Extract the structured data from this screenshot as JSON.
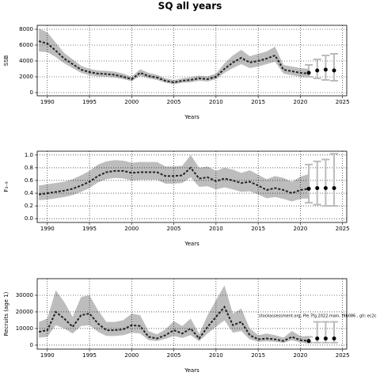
{
  "chart_data": [
    {
      "type": "line",
      "title": "SQ all years",
      "x_label": "Years",
      "y_label": "SSB",
      "xlim": [
        1988.8,
        2025.5
      ],
      "xticks": [
        1990,
        1995,
        2000,
        2005,
        2010,
        2015,
        2020,
        2025
      ],
      "ylim": [
        -400,
        8500
      ],
      "yticks": [
        0,
        2000,
        4000,
        6000,
        8000
      ],
      "grid": true,
      "x": [
        1989,
        1990,
        1991,
        1992,
        1993,
        1994,
        1995,
        1996,
        1997,
        1998,
        1999,
        2000,
        2001,
        2002,
        2003,
        2004,
        2005,
        2006,
        2007,
        2008,
        2009,
        2010,
        2011,
        2012,
        2013,
        2014,
        2015,
        2016,
        2017,
        2018,
        2019,
        2020,
        2021
      ],
      "values": [
        6500,
        6200,
        5300,
        4300,
        3600,
        2900,
        2600,
        2400,
        2350,
        2250,
        2000,
        1700,
        2500,
        2100,
        1900,
        1500,
        1300,
        1500,
        1600,
        1800,
        1700,
        2000,
        3000,
        3800,
        4400,
        3800,
        4000,
        4300,
        4700,
        2900,
        2700,
        2500,
        2400
      ],
      "lower": [
        5200,
        5100,
        4500,
        3700,
        3100,
        2500,
        2200,
        2050,
        2000,
        1900,
        1700,
        1450,
        2100,
        1800,
        1600,
        1250,
        1050,
        1250,
        1300,
        1500,
        1400,
        1700,
        2500,
        3100,
        3600,
        3100,
        3300,
        3600,
        3900,
        2400,
        2200,
        2000,
        1900
      ],
      "upper": [
        8100,
        7600,
        6300,
        5000,
        4200,
        3400,
        3000,
        2800,
        2750,
        2650,
        2400,
        2000,
        2950,
        2500,
        2250,
        1800,
        1600,
        1800,
        1950,
        2150,
        2050,
        2400,
        3700,
        4700,
        5400,
        4600,
        4900,
        5200,
        5800,
        3500,
        3300,
        3100,
        3000
      ],
      "forecast_x": [
        2021,
        2022,
        2023,
        2024
      ],
      "forecast_values": [
        2500,
        2800,
        2900,
        2800
      ],
      "forecast_lower": [
        2000,
        1800,
        1600,
        1500
      ],
      "forecast_upper": [
        3500,
        4200,
        4700,
        4900
      ],
      "color": "#222222",
      "band_color": "#bdbdbd",
      "forecast_color": "#bbbbbb"
    },
    {
      "type": "line",
      "x_label": "Years",
      "y_label": "F₃₋₉",
      "xlim": [
        1988.8,
        2025.5
      ],
      "xticks": [
        1990,
        1995,
        2000,
        2005,
        2010,
        2015,
        2020,
        2025
      ],
      "ylim": [
        -0.06,
        1.06
      ],
      "yticks": [
        {
          "value": 0,
          "label": "0.0"
        },
        0.2,
        0.4,
        0.6,
        0.8,
        {
          "value": 1,
          "label": "1.0"
        }
      ],
      "grid": true,
      "x": [
        1989,
        1990,
        1991,
        1992,
        1993,
        1994,
        1995,
        1996,
        1997,
        1998,
        1999,
        2000,
        2001,
        2002,
        2003,
        2004,
        2005,
        2006,
        2007,
        2008,
        2009,
        2010,
        2011,
        2012,
        2013,
        2014,
        2015,
        2016,
        2017,
        2018,
        2019,
        2020,
        2021
      ],
      "values": [
        0.38,
        0.4,
        0.42,
        0.44,
        0.47,
        0.52,
        0.58,
        0.67,
        0.73,
        0.75,
        0.75,
        0.72,
        0.73,
        0.73,
        0.73,
        0.67,
        0.67,
        0.68,
        0.8,
        0.63,
        0.65,
        0.59,
        0.63,
        0.6,
        0.56,
        0.58,
        0.52,
        0.45,
        0.48,
        0.45,
        0.4,
        0.45,
        0.47
      ],
      "lower": [
        0.29,
        0.3,
        0.32,
        0.34,
        0.37,
        0.42,
        0.48,
        0.57,
        0.62,
        0.64,
        0.63,
        0.6,
        0.61,
        0.61,
        0.61,
        0.55,
        0.55,
        0.56,
        0.65,
        0.5,
        0.51,
        0.46,
        0.49,
        0.46,
        0.42,
        0.43,
        0.38,
        0.32,
        0.34,
        0.31,
        0.27,
        0.31,
        0.32
      ],
      "upper": [
        0.52,
        0.54,
        0.56,
        0.58,
        0.62,
        0.68,
        0.75,
        0.85,
        0.9,
        0.92,
        0.91,
        0.88,
        0.89,
        0.89,
        0.89,
        0.82,
        0.82,
        0.83,
        1.0,
        0.8,
        0.82,
        0.75,
        0.8,
        0.77,
        0.72,
        0.76,
        0.69,
        0.62,
        0.67,
        0.64,
        0.58,
        0.66,
        0.7
      ],
      "forecast_x": [
        2021,
        2022,
        2023,
        2024
      ],
      "forecast_values": [
        0.47,
        0.48,
        0.48,
        0.48
      ],
      "forecast_lower": [
        0.25,
        0.22,
        0.2,
        0.2
      ],
      "forecast_upper": [
        0.85,
        0.9,
        0.93,
        1.02
      ],
      "color": "#222222",
      "band_color": "#bdbdbd",
      "forecast_color": "#bbbbbb"
    },
    {
      "type": "line",
      "x_label": "Years",
      "y_label": "Recruits (age 1)",
      "annotation": "stockassessment.org, Ple.7fg.2022.main, f9b086 , git: ec2c",
      "xlim": [
        1988.8,
        2025.5
      ],
      "xticks": [
        1990,
        1995,
        2000,
        2005,
        2010,
        2015,
        2020,
        2025
      ],
      "ylim": [
        -2400,
        40000
      ],
      "yticks": [
        0,
        10000,
        20000,
        30000
      ],
      "grid": true,
      "x": [
        1989,
        1990,
        1991,
        1992,
        1993,
        1994,
        1995,
        1996,
        1997,
        1998,
        1999,
        2000,
        2001,
        2002,
        2003,
        2004,
        2005,
        2006,
        2007,
        2008,
        2009,
        2010,
        2011,
        2012,
        2013,
        2014,
        2015,
        2016,
        2017,
        2018,
        2019,
        2020,
        2021
      ],
      "values": [
        8000,
        9000,
        20000,
        16000,
        11000,
        18000,
        19000,
        13000,
        9000,
        9000,
        9500,
        12000,
        11500,
        5000,
        4000,
        6000,
        9000,
        7000,
        10000,
        4000,
        11000,
        17000,
        23000,
        12000,
        14000,
        6000,
        3500,
        4000,
        3500,
        2500,
        5000,
        3000,
        2500
      ],
      "lower": [
        4500,
        5000,
        12000,
        10000,
        7000,
        11500,
        12000,
        8000,
        5500,
        5500,
        6000,
        7500,
        7000,
        3000,
        2500,
        3800,
        5500,
        4300,
        6000,
        2400,
        7000,
        11000,
        15000,
        7500,
        8500,
        3500,
        2000,
        2300,
        2000,
        1400,
        2900,
        1600,
        1200
      ],
      "upper": [
        14000,
        16000,
        33000,
        26000,
        17000,
        29000,
        30000,
        21000,
        14000,
        14000,
        15000,
        19000,
        18000,
        8500,
        6500,
        9500,
        14500,
        11500,
        16000,
        6800,
        18000,
        27000,
        36000,
        19000,
        22000,
        10000,
        6000,
        7000,
        6000,
        4500,
        8500,
        5500,
        5000
      ],
      "forecast_x": [
        2021,
        2022,
        2023,
        2024
      ],
      "forecast_values": [
        2500,
        4000,
        4000,
        4000
      ],
      "forecast_lower": [
        1500,
        1500,
        1500,
        1500
      ],
      "forecast_upper": [
        5000,
        14000,
        14000,
        14000
      ],
      "color": "#222222",
      "band_color": "#bdbdbd",
      "forecast_color": "#bbbbbb"
    }
  ]
}
